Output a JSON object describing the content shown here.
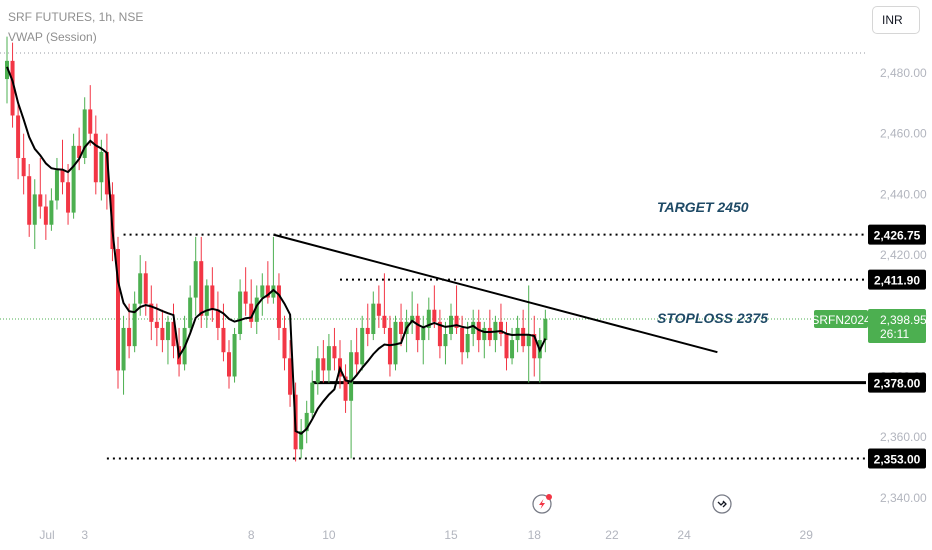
{
  "header": {
    "symbol_line": "SRF FUTURES, 1h, NSE",
    "indicator_line": "VWAP (Session)",
    "currency": "INR"
  },
  "colors": {
    "up": "#4caf50",
    "down": "#f23645",
    "vwap": "#000000",
    "annotation_text": "#1e4a66",
    "axis_text": "#b2b5be",
    "grid_dots": "#9598a1"
  },
  "chart_data": {
    "type": "candlestick",
    "title": "SRF FUTURES, 1h, NSE",
    "ylim": [
      2337,
      2497
    ],
    "yticks": [
      2340,
      2360,
      2380,
      2400,
      2420,
      2440,
      2460,
      2480
    ],
    "ytick_labels": [
      "2,340.00",
      "2,360.00",
      "2,380.00",
      "2,400.00",
      "2,420.00",
      "2,440.00",
      "2,460.00",
      "2,480.00"
    ],
    "xticks": [
      "Jul",
      "3",
      "8",
      "10",
      "15",
      "18",
      "22",
      "24",
      "29"
    ],
    "price_levels": [
      {
        "value": 2426.75,
        "label": "2,426.75",
        "style": "dotted",
        "from_bar": 21
      },
      {
        "value": 2411.9,
        "label": "2,411.90",
        "style": "dotted",
        "from_bar": 60
      },
      {
        "value": 2378.0,
        "label": "2,378.00",
        "style": "solid",
        "from_bar": 55
      },
      {
        "value": 2353.0,
        "label": "2,353.00",
        "style": "dotted",
        "from_bar": 18
      }
    ],
    "current_price": {
      "symbol": "SRFN2024",
      "value": "2,398.95",
      "countdown": "26:11"
    },
    "annotations": [
      "TARGET 2450",
      "STOPLOSS 2375"
    ],
    "trendline": {
      "from_bar": 48,
      "from_value": 2426.75,
      "to_bar": 128,
      "to_value": 2388
    },
    "candles": [
      [
        2478,
        2492,
        2470,
        2484
      ],
      [
        2484,
        2490,
        2462,
        2466
      ],
      [
        2466,
        2470,
        2445,
        2452
      ],
      [
        2452,
        2460,
        2440,
        2446
      ],
      [
        2446,
        2450,
        2426,
        2430
      ],
      [
        2430,
        2445,
        2422,
        2440
      ],
      [
        2440,
        2452,
        2432,
        2436
      ],
      [
        2436,
        2440,
        2425,
        2430
      ],
      [
        2430,
        2442,
        2428,
        2438
      ],
      [
        2438,
        2452,
        2435,
        2448
      ],
      [
        2448,
        2458,
        2440,
        2444
      ],
      [
        2444,
        2450,
        2430,
        2434
      ],
      [
        2434,
        2460,
        2432,
        2456
      ],
      [
        2456,
        2462,
        2448,
        2452
      ],
      [
        2452,
        2472,
        2450,
        2468
      ],
      [
        2468,
        2476,
        2456,
        2460
      ],
      [
        2460,
        2466,
        2440,
        2444
      ],
      [
        2444,
        2458,
        2438,
        2454
      ],
      [
        2454,
        2460,
        2435,
        2440
      ],
      [
        2440,
        2444,
        2418,
        2422
      ],
      [
        2422,
        2426,
        2376,
        2382
      ],
      [
        2382,
        2400,
        2374,
        2396
      ],
      [
        2396,
        2404,
        2386,
        2390
      ],
      [
        2390,
        2408,
        2388,
        2404
      ],
      [
        2404,
        2420,
        2400,
        2414
      ],
      [
        2414,
        2418,
        2400,
        2404
      ],
      [
        2404,
        2410,
        2392,
        2398
      ],
      [
        2398,
        2404,
        2390,
        2396
      ],
      [
        2396,
        2402,
        2388,
        2392
      ],
      [
        2392,
        2400,
        2384,
        2398
      ],
      [
        2398,
        2404,
        2386,
        2390
      ],
      [
        2390,
        2396,
        2380,
        2384
      ],
      [
        2384,
        2400,
        2382,
        2396
      ],
      [
        2396,
        2410,
        2394,
        2406
      ],
      [
        2406,
        2426,
        2400,
        2418
      ],
      [
        2418,
        2426,
        2396,
        2400
      ],
      [
        2400,
        2412,
        2396,
        2410
      ],
      [
        2410,
        2416,
        2398,
        2402
      ],
      [
        2402,
        2408,
        2392,
        2396
      ],
      [
        2396,
        2404,
        2385,
        2388
      ],
      [
        2388,
        2392,
        2376,
        2380
      ],
      [
        2380,
        2396,
        2378,
        2394
      ],
      [
        2394,
        2412,
        2392,
        2408
      ],
      [
        2408,
        2416,
        2400,
        2404
      ],
      [
        2404,
        2412,
        2396,
        2398
      ],
      [
        2398,
        2410,
        2394,
        2406
      ],
      [
        2406,
        2414,
        2400,
        2410
      ],
      [
        2410,
        2418,
        2404,
        2406
      ],
      [
        2406,
        2426,
        2404,
        2410
      ],
      [
        2410,
        2414,
        2392,
        2396
      ],
      [
        2396,
        2400,
        2382,
        2386
      ],
      [
        2386,
        2392,
        2370,
        2374
      ],
      [
        2374,
        2378,
        2352,
        2356
      ],
      [
        2356,
        2366,
        2353,
        2362
      ],
      [
        2362,
        2372,
        2358,
        2368
      ],
      [
        2368,
        2382,
        2366,
        2378
      ],
      [
        2378,
        2390,
        2374,
        2386
      ],
      [
        2386,
        2392,
        2378,
        2382
      ],
      [
        2382,
        2394,
        2378,
        2390
      ],
      [
        2390,
        2396,
        2382,
        2386
      ],
      [
        2386,
        2392,
        2376,
        2380
      ],
      [
        2380,
        2384,
        2368,
        2372
      ],
      [
        2372,
        2392,
        2353,
        2388
      ],
      [
        2388,
        2396,
        2380,
        2384
      ],
      [
        2384,
        2400,
        2382,
        2396
      ],
      [
        2396,
        2404,
        2390,
        2394
      ],
      [
        2394,
        2408,
        2392,
        2404
      ],
      [
        2404,
        2410,
        2396,
        2400
      ],
      [
        2400,
        2414,
        2394,
        2396
      ],
      [
        2396,
        2400,
        2380,
        2384
      ],
      [
        2384,
        2400,
        2382,
        2398
      ],
      [
        2398,
        2404,
        2390,
        2394
      ],
      [
        2394,
        2402,
        2388,
        2398
      ],
      [
        2398,
        2408,
        2394,
        2400
      ],
      [
        2400,
        2404,
        2388,
        2392
      ],
      [
        2392,
        2400,
        2384,
        2396
      ],
      [
        2396,
        2406,
        2392,
        2402
      ],
      [
        2402,
        2410,
        2396,
        2398
      ],
      [
        2398,
        2402,
        2386,
        2390
      ],
      [
        2390,
        2398,
        2384,
        2394
      ],
      [
        2394,
        2404,
        2392,
        2400
      ],
      [
        2400,
        2410,
        2394,
        2396
      ],
      [
        2396,
        2400,
        2384,
        2388
      ],
      [
        2388,
        2398,
        2386,
        2394
      ],
      [
        2394,
        2402,
        2390,
        2398
      ],
      [
        2398,
        2402,
        2388,
        2392
      ],
      [
        2392,
        2398,
        2386,
        2396
      ],
      [
        2396,
        2402,
        2390,
        2392
      ],
      [
        2392,
        2400,
        2388,
        2398
      ],
      [
        2398,
        2404,
        2390,
        2394
      ],
      [
        2394,
        2398,
        2382,
        2386
      ],
      [
        2386,
        2396,
        2384,
        2392
      ],
      [
        2392,
        2400,
        2388,
        2396
      ],
      [
        2396,
        2402,
        2388,
        2390
      ],
      [
        2390,
        2410,
        2378,
        2394
      ],
      [
        2394,
        2400,
        2380,
        2386
      ],
      [
        2386,
        2396,
        2378,
        2392
      ],
      [
        2392,
        2402,
        2388,
        2399
      ]
    ]
  }
}
